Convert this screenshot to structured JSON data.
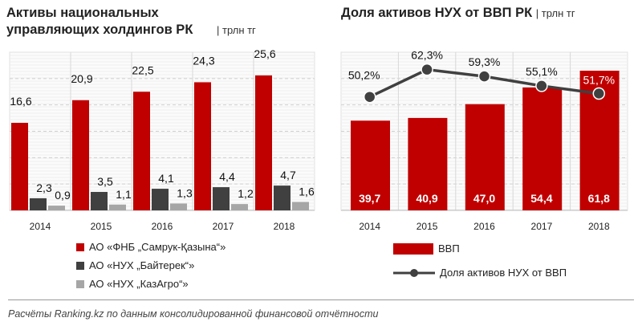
{
  "chart_data": [
    {
      "type": "bar",
      "title": "Активы национальных управляющих холдингов РК",
      "unit": "| трлн тг",
      "categories": [
        "2014",
        "2015",
        "2016",
        "2017",
        "2018"
      ],
      "series": [
        {
          "name": "АО «ФНБ „Самрук-Қазына“»",
          "color": "#c00000",
          "values": [
            16.6,
            20.9,
            22.5,
            24.3,
            25.6
          ],
          "labels": [
            "16,6",
            "20,9",
            "22,5",
            "24,3",
            "25,6"
          ]
        },
        {
          "name": "АО «НУХ „Байтерек“»",
          "color": "#404040",
          "values": [
            2.3,
            3.5,
            4.1,
            4.4,
            4.7
          ],
          "labels": [
            "2,3",
            "3,5",
            "4,1",
            "4,4",
            "4,7"
          ]
        },
        {
          "name": "АО «НУХ „КазАгро“»",
          "color": "#a6a6a6",
          "values": [
            0.9,
            1.1,
            1.3,
            1.2,
            1.6
          ],
          "labels": [
            "0,9",
            "1,1",
            "1,3",
            "1,2",
            "1,6"
          ]
        }
      ],
      "ylim": [
        0,
        30
      ],
      "grid": "dashed horizontal",
      "legend": "bottom"
    },
    {
      "type": "bar+line",
      "title": "Доля активов НУХ от ВВП РК",
      "unit": "| трлн тг",
      "categories": [
        "2014",
        "2015",
        "2016",
        "2017",
        "2018"
      ],
      "series": [
        {
          "name": "ВВП",
          "type": "bar",
          "color": "#c00000",
          "values": [
            39.7,
            40.9,
            47.0,
            54.4,
            61.8
          ],
          "labels": [
            "39,7",
            "40,9",
            "47,0",
            "54,4",
            "61,8"
          ]
        },
        {
          "name": "Доля активов НУХ от ВВП",
          "type": "line",
          "color": "#404040",
          "values": [
            50.2,
            62.3,
            59.3,
            55.1,
            51.7
          ],
          "labels": [
            "50,2%",
            "62,3%",
            "59,3%",
            "55,1%",
            "51,7%"
          ]
        }
      ],
      "ylim": [
        0,
        70
      ],
      "grid": "dashed horizontal",
      "legend": "bottom"
    }
  ],
  "footer": "Расчёты Ranking.kz по данным консолидированной финансовой отчётности"
}
